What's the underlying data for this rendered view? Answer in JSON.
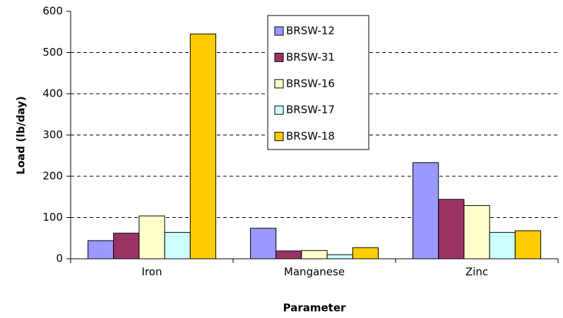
{
  "chart_data": {
    "type": "bar",
    "xlabel": "Parameter",
    "ylabel": "Load (lb/day)",
    "categories": [
      "Iron",
      "Manganese",
      "Zinc"
    ],
    "series": [
      {
        "name": "BRSW-12",
        "color": "#9999ff",
        "values": [
          44,
          74,
          233
        ]
      },
      {
        "name": "BRSW-31",
        "color": "#993366",
        "values": [
          62,
          19,
          144
        ]
      },
      {
        "name": "BRSW-16",
        "color": "#ffffcc",
        "values": [
          104,
          20,
          129
        ]
      },
      {
        "name": "BRSW-17",
        "color": "#ccffff",
        "values": [
          64,
          10,
          64
        ]
      },
      {
        "name": "BRSW-18",
        "color": "#ffcc00",
        "values": [
          545,
          27,
          68
        ]
      }
    ],
    "ylim": [
      0,
      600
    ],
    "yticks": [
      0,
      100,
      200,
      300,
      400,
      500,
      600
    ],
    "grid": true,
    "legend": "top"
  }
}
